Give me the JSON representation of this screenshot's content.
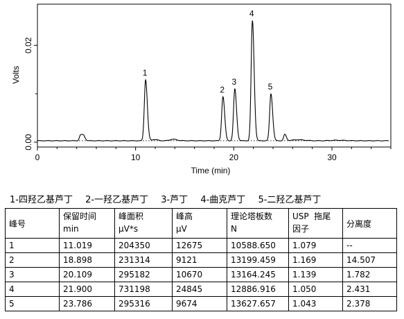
{
  "chart_data": {
    "type": "line",
    "xlabel": "Time (min)",
    "ylabel": "Volts",
    "xlim": [
      0,
      36
    ],
    "ylim": [
      -0.001,
      0.0285
    ],
    "x_ticks": [
      0,
      10,
      20,
      30
    ],
    "y_ticks": [
      0.0,
      0.02
    ],
    "y_tick_labels": [
      "0.00",
      "0.02"
    ],
    "baseline": 0.0003,
    "peaks": [
      {
        "label": "1",
        "time": 11.019,
        "height": 0.0126
      },
      {
        "label": "2",
        "time": 18.898,
        "height": 0.0091
      },
      {
        "label": "3",
        "time": 20.109,
        "height": 0.0107
      },
      {
        "label": "4",
        "time": 21.9,
        "height": 0.0248
      },
      {
        "label": "5",
        "time": 23.786,
        "height": 0.0097
      }
    ],
    "minor_peaks": [
      {
        "time": 4.4,
        "height": 0.0012
      },
      {
        "time": 4.7,
        "height": 0.001
      },
      {
        "time": 25.2,
        "height": 0.0013
      }
    ]
  },
  "legend": {
    "items": [
      "1-四羟乙基芦丁",
      "2-一羟乙基芦丁",
      "3-芦丁",
      "4-曲克芦丁",
      "5-二羟乙基芦丁"
    ]
  },
  "table": {
    "headers": [
      {
        "line1": "峰号",
        "line2": ""
      },
      {
        "line1": "保留时间",
        "line2": "min"
      },
      {
        "line1": "峰面积",
        "line2": "μV*s"
      },
      {
        "line1": "峰高",
        "line2": "μV"
      },
      {
        "line1": "理论塔板数",
        "line2": "N"
      },
      {
        "line1": "USP  拖尾",
        "line2": "因子"
      },
      {
        "line1": "分离度",
        "line2": ""
      }
    ],
    "rows": [
      [
        "1",
        "11.019",
        "204350",
        "12675",
        "10588.650",
        "1.079",
        "--"
      ],
      [
        "2",
        "18.898",
        "231314",
        "9121",
        "13199.459",
        "1.169",
        "14.507"
      ],
      [
        "3",
        "20.109",
        "295182",
        "10670",
        "13164.245",
        "1.139",
        "1.782"
      ],
      [
        "4",
        "21.900",
        "731198",
        "24845",
        "12886.916",
        "1.050",
        "2.431"
      ],
      [
        "5",
        "23.786",
        "295316",
        "9674",
        "13627.657",
        "1.043",
        "2.378"
      ]
    ]
  }
}
